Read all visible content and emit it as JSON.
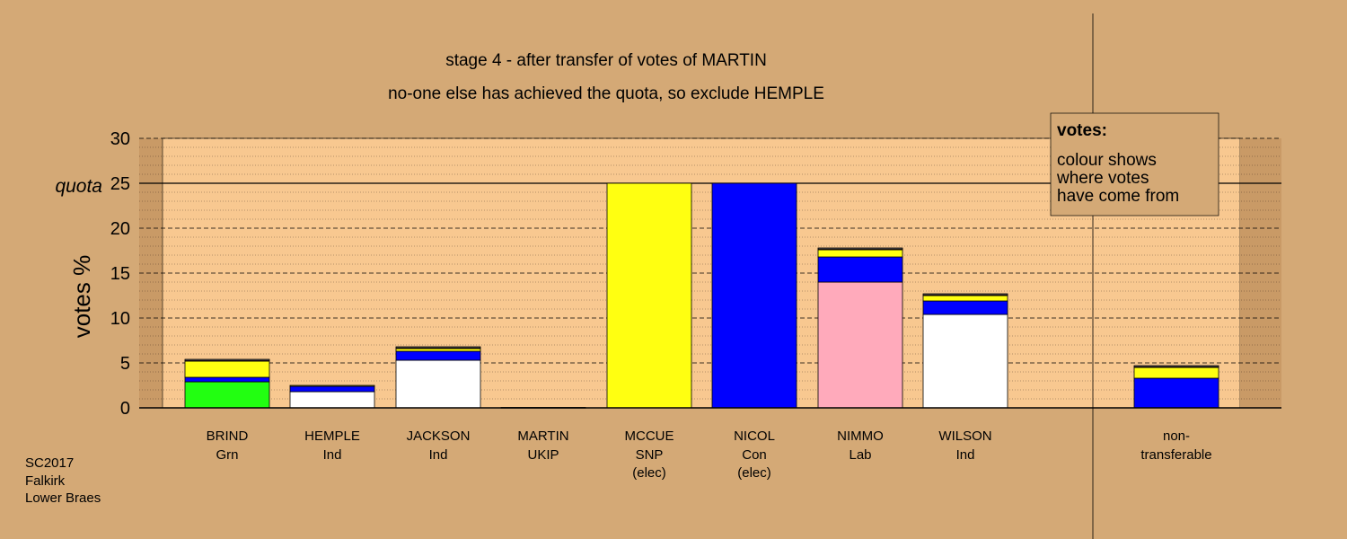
{
  "titles": {
    "line1": "stage 4 - after transfer of votes of MARTIN",
    "line2": "no-one else has achieved the quota, so exclude HEMPLE"
  },
  "legend_box": {
    "heading": "votes:",
    "lines": [
      "colour shows",
      "where votes",
      "have come from"
    ]
  },
  "footer": {
    "lines": [
      "SC2017",
      "Falkirk",
      "Lower Braes"
    ]
  },
  "colors": {
    "background": "#d4a976",
    "plot_area": "#f8c890",
    "Grn": "#22ff11",
    "SNP": "#ffff11",
    "Con": "#0000ff",
    "Lab": "#ffaabb",
    "Ind": "#ffffff",
    "UKIP": "#993399"
  },
  "chart_data": {
    "type": "bar",
    "stacked": true,
    "ylabel": "votes %",
    "ylim": [
      0,
      30
    ],
    "yticks": [
      0,
      5,
      10,
      15,
      20,
      25,
      30
    ],
    "quota": {
      "label": "quota",
      "value": 25
    },
    "grid": true,
    "categories": [
      {
        "name": "BRIND",
        "party": "Grn",
        "note": ""
      },
      {
        "name": "HEMPLE",
        "party": "Ind",
        "note": ""
      },
      {
        "name": "JACKSON",
        "party": "Ind",
        "note": ""
      },
      {
        "name": "MARTIN",
        "party": "UKIP",
        "note": ""
      },
      {
        "name": "MCCUE",
        "party": "SNP",
        "note": "(elec)"
      },
      {
        "name": "NICOL",
        "party": "Con",
        "note": "(elec)"
      },
      {
        "name": "NIMMO",
        "party": "Lab",
        "note": ""
      },
      {
        "name": "WILSON",
        "party": "Ind",
        "note": ""
      },
      {
        "name": "non-",
        "party": "transferable",
        "note": ""
      }
    ],
    "series": [
      {
        "bars": [
          [
            {
              "from": "Grn",
              "value": 2.9
            },
            {
              "from": "Con",
              "value": 0.5
            },
            {
              "from": "SNP",
              "value": 1.8
            },
            {
              "from": "UKIP",
              "value": 0.1
            },
            {
              "from": "Ind",
              "value": 0.1
            }
          ],
          [
            {
              "from": "Ind",
              "value": 1.8
            },
            {
              "from": "Con",
              "value": 0.6
            },
            {
              "from": "SNP",
              "value": 0.1
            }
          ],
          [
            {
              "from": "Ind",
              "value": 5.3
            },
            {
              "from": "Con",
              "value": 1.0
            },
            {
              "from": "SNP",
              "value": 0.3
            },
            {
              "from": "UKIP",
              "value": 0.1
            },
            {
              "from": "Ind",
              "value": 0.1
            }
          ],
          [
            {
              "from": "UKIP",
              "value": 0.05
            }
          ],
          [
            {
              "from": "SNP",
              "value": 25
            }
          ],
          [
            {
              "from": "Con",
              "value": 25
            }
          ],
          [
            {
              "from": "Lab",
              "value": 14.0
            },
            {
              "from": "Con",
              "value": 2.8
            },
            {
              "from": "SNP",
              "value": 0.8
            },
            {
              "from": "UKIP",
              "value": 0.1
            },
            {
              "from": "Ind",
              "value": 0.1
            }
          ],
          [
            {
              "from": "Ind",
              "value": 10.4
            },
            {
              "from": "Con",
              "value": 1.5
            },
            {
              "from": "SNP",
              "value": 0.6
            },
            {
              "from": "UKIP",
              "value": 0.1
            },
            {
              "from": "Ind",
              "value": 0.1
            }
          ],
          [
            {
              "from": "Con",
              "value": 3.3
            },
            {
              "from": "SNP",
              "value": 1.2
            },
            {
              "from": "UKIP",
              "value": 0.1
            },
            {
              "from": "Ind",
              "value": 0.1
            }
          ]
        ]
      }
    ]
  }
}
